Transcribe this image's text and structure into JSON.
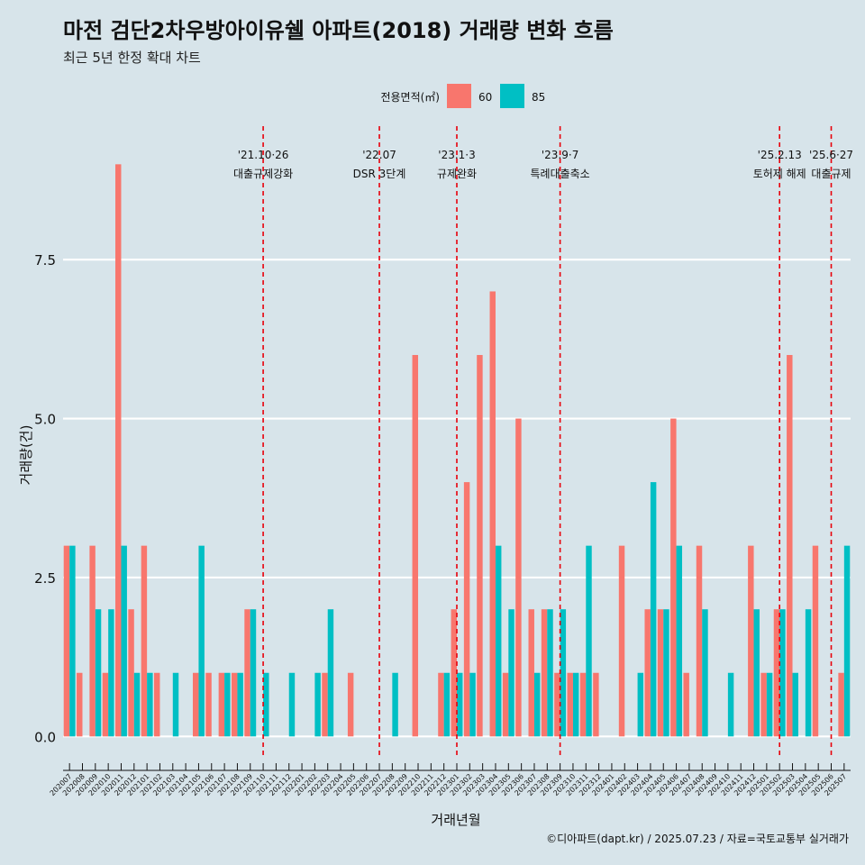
{
  "chart_data": {
    "type": "bar",
    "title": "마전 검단2차우방아이유쉘 아파트(2018) 거래량 변화 흐름",
    "subtitle": "최근 5년 한정 확대 차트",
    "xlabel": "거래년월",
    "ylabel": "거래량(건)",
    "caption": "©디아파트(dapt.kr) / 2025.07.23 / 자료=국토교통부 실거래가",
    "ylim": [
      -0.35,
      9.6
    ],
    "yticks": [
      0,
      2.5,
      5,
      7.5
    ],
    "ytick_labels": [
      "0.0",
      "2.5",
      "5.0",
      "7.5"
    ],
    "legend": {
      "title": "전용면적(㎡)",
      "position": "top"
    },
    "categories": [
      "202007",
      "202008",
      "202009",
      "202010",
      "202011",
      "202012",
      "202101",
      "202102",
      "202103",
      "202104",
      "202105",
      "202106",
      "202107",
      "202108",
      "202109",
      "202110",
      "202111",
      "202112",
      "202201",
      "202202",
      "202203",
      "202204",
      "202205",
      "202206",
      "202207",
      "202208",
      "202209",
      "202210",
      "202211",
      "202212",
      "202301",
      "202302",
      "202303",
      "202304",
      "202305",
      "202306",
      "202307",
      "202308",
      "202309",
      "202310",
      "202311",
      "202312",
      "202401",
      "202402",
      "202403",
      "202404",
      "202405",
      "202406",
      "202407",
      "202408",
      "202409",
      "202410",
      "202411",
      "202412",
      "202501",
      "202502",
      "202503",
      "202504",
      "202505",
      "202506",
      "202507"
    ],
    "series": [
      {
        "name": "60",
        "color": "#f8766d",
        "values": [
          3,
          1,
          3,
          1,
          9,
          2,
          3,
          1,
          0,
          0,
          1,
          1,
          1,
          1,
          2,
          0,
          0,
          0,
          0,
          0,
          1,
          0,
          1,
          0,
          0,
          0,
          0,
          6,
          0,
          1,
          2,
          4,
          6,
          7,
          1,
          5,
          2,
          2,
          1,
          1,
          1,
          1,
          0,
          3,
          0,
          2,
          2,
          5,
          1,
          3,
          0,
          0,
          0,
          3,
          1,
          2,
          6,
          0,
          3,
          0,
          1
        ]
      },
      {
        "name": "85",
        "color": "#00bfc4",
        "values": [
          3,
          0,
          2,
          2,
          3,
          1,
          1,
          0,
          1,
          0,
          3,
          0,
          1,
          1,
          2,
          1,
          0,
          1,
          0,
          1,
          2,
          0,
          0,
          0,
          0,
          1,
          0,
          0,
          0,
          1,
          1,
          1,
          0,
          3,
          2,
          0,
          1,
          2,
          2,
          1,
          3,
          0,
          0,
          0,
          1,
          4,
          2,
          3,
          0,
          2,
          0,
          1,
          0,
          2,
          1,
          2,
          1,
          2,
          0,
          0,
          3
        ]
      }
    ],
    "annotations": [
      {
        "at": "202110",
        "date": "'21.10·26",
        "label": "대출규제강화"
      },
      {
        "at": "202207",
        "date": "'22.07",
        "label": "DSR 3단계"
      },
      {
        "at": "202301",
        "date": "'23.1·3",
        "label": "규제완화"
      },
      {
        "at": "202309",
        "date": "'23.9·7",
        "label": "특례대출축소"
      },
      {
        "at": "202502",
        "date": "'25.2.13",
        "label": "토허제 해제"
      },
      {
        "at": "202506",
        "date": "'25.6·27",
        "label": "대출규제"
      }
    ],
    "annotation_color": "#e8000b"
  }
}
